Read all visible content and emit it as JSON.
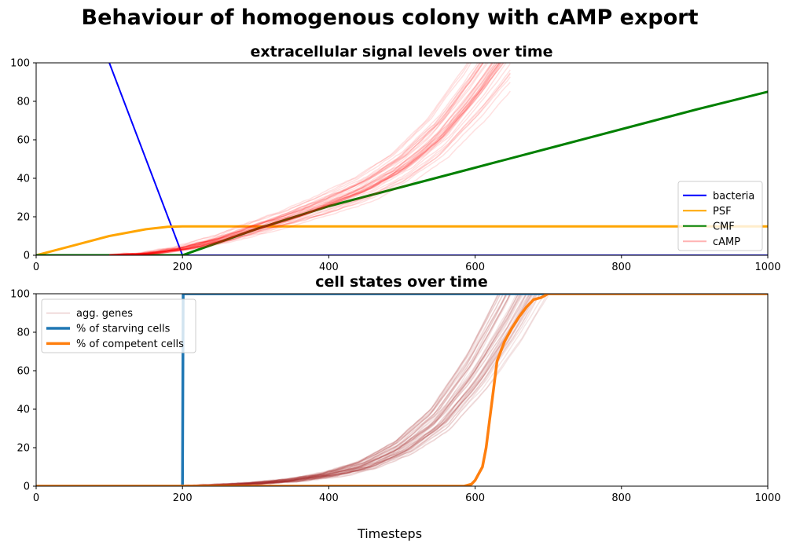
{
  "suptitle": "Behaviour of homogenous colony with cAMP export",
  "xlabel": "Timesteps",
  "chart_data": [
    {
      "type": "line",
      "title": "extracellular signal levels over time",
      "xlim": [
        0,
        1000
      ],
      "ylim": [
        0,
        100
      ],
      "x_ticks": [
        0,
        200,
        400,
        600,
        800,
        1000
      ],
      "y_ticks": [
        0,
        20,
        40,
        60,
        80,
        100
      ],
      "legend_position": "lower-right",
      "legend": [
        "bacteria",
        "PSF",
        "CMF",
        "cAMP"
      ],
      "series": [
        {
          "name": "bacteria",
          "color": "#0000ff",
          "x": [
            0,
            100,
            200,
            1000
          ],
          "y": [
            155,
            100,
            0,
            0
          ]
        },
        {
          "name": "PSF",
          "color": "#ffa500",
          "x": [
            0,
            50,
            100,
            150,
            180,
            200,
            300,
            1000
          ],
          "y": [
            0,
            5,
            10,
            13.5,
            14.8,
            15,
            15,
            15
          ]
        },
        {
          "name": "CMF",
          "color": "#008000",
          "x": [
            0,
            100,
            200,
            300,
            400,
            500,
            600,
            700,
            800,
            900,
            1000
          ],
          "y": [
            0,
            0,
            0,
            13.5,
            25.5,
            35.5,
            45.5,
            55.5,
            65.5,
            75.5,
            85
          ]
        },
        {
          "name": "cAMP",
          "color": "#ff0000",
          "x": [
            100,
            150,
            200,
            250,
            300,
            350,
            400,
            450,
            500,
            550,
            600,
            650
          ],
          "y": [
            0,
            0.8,
            3.5,
            8,
            14,
            20,
            27,
            35,
            46,
            62,
            85,
            112
          ],
          "replicates": 40,
          "alpha": 0.12
        }
      ]
    },
    {
      "type": "line",
      "title": "cell states over time",
      "xlim": [
        0,
        1000
      ],
      "ylim": [
        0,
        100
      ],
      "x_ticks": [
        0,
        200,
        400,
        600,
        800,
        1000
      ],
      "y_ticks": [
        0,
        20,
        40,
        60,
        80,
        100
      ],
      "legend_position": "upper-left",
      "legend": [
        "agg. genes",
        "% of starving cells",
        "% of competent cells"
      ],
      "series": [
        {
          "name": "agg. genes",
          "color": "#a52a2a",
          "x": [
            200,
            250,
            300,
            350,
            400,
            450,
            500,
            550,
            600,
            650,
            700
          ],
          "y": [
            0,
            0.5,
            1.5,
            3,
            6,
            11,
            20,
            35,
            60,
            92,
            130
          ],
          "replicates": 50,
          "alpha": 0.12
        },
        {
          "name": "% of starving cells",
          "color": "#1f77b4",
          "x": [
            0,
            199,
            200,
            201,
            1000
          ],
          "y": [
            0,
            0,
            0,
            100,
            100
          ]
        },
        {
          "name": "% of competent cells",
          "color": "#ff7f0e",
          "x": [
            0,
            585,
            595,
            600,
            610,
            615,
            620,
            625,
            630,
            640,
            650,
            660,
            670,
            680,
            690,
            700,
            1000
          ],
          "y": [
            0,
            0,
            1,
            3,
            10,
            20,
            35,
            50,
            65,
            75,
            82,
            88,
            93,
            97,
            98,
            100,
            100
          ]
        }
      ]
    }
  ]
}
